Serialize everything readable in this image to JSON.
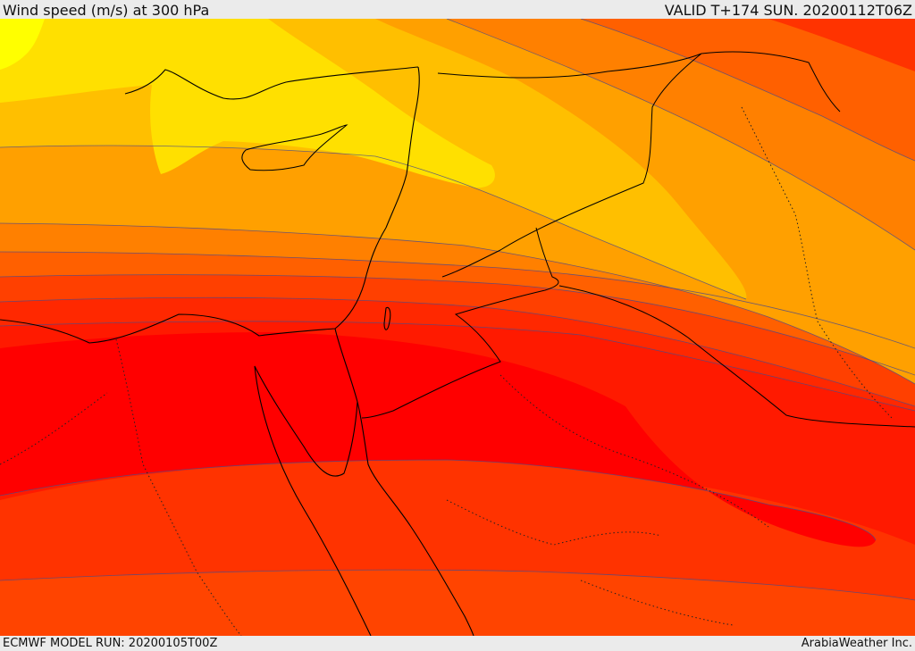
{
  "header": {
    "title": "Wind speed (m/s) at 300 hPa",
    "valid_time": "VALID T+174 SUN. 20200112T06Z"
  },
  "footer": {
    "model_run": "ECMWF MODEL RUN: 20200105T00Z",
    "credit": "ArabiaWeather Inc."
  },
  "map": {
    "field": "wind-speed-300hPa",
    "palette": [
      "#ffff00",
      "#ffe000",
      "#ffbf00",
      "#ffa000",
      "#ff8000",
      "#ff6000",
      "#ff4000",
      "#ff2000",
      "#ff0000"
    ]
  }
}
